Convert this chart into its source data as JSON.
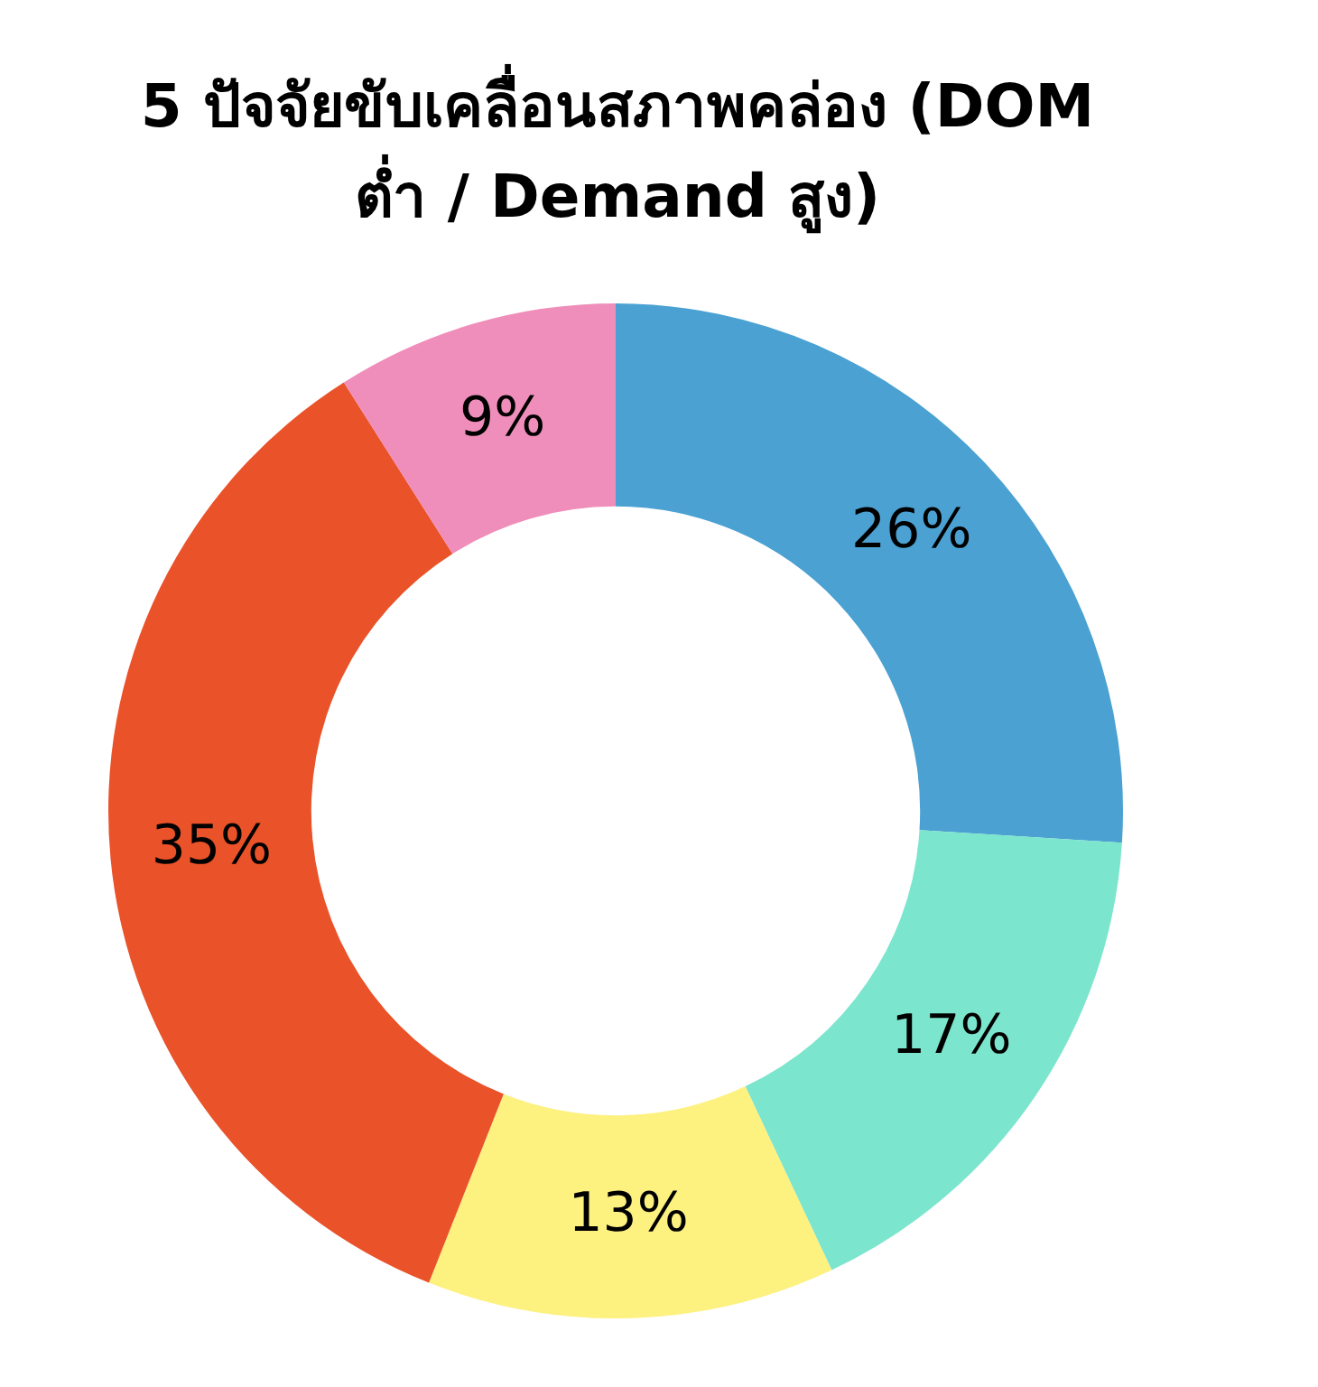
{
  "chart_data": {
    "type": "donut",
    "title": "5 ปัจจัยขับเคลื่อนสภาพคล่อง (DOM ต่ำ / Demand สูง)",
    "categories": [
      null,
      null,
      null,
      null,
      null
    ],
    "values": [
      26,
      17,
      13,
      35,
      9
    ],
    "colors": [
      "#4aa1d2",
      "#7be5cd",
      "#fdf180",
      "#ea5229",
      "#ef8eba"
    ],
    "value_labels": [
      "26%",
      "17%",
      "13%",
      "35%",
      "9%"
    ]
  }
}
